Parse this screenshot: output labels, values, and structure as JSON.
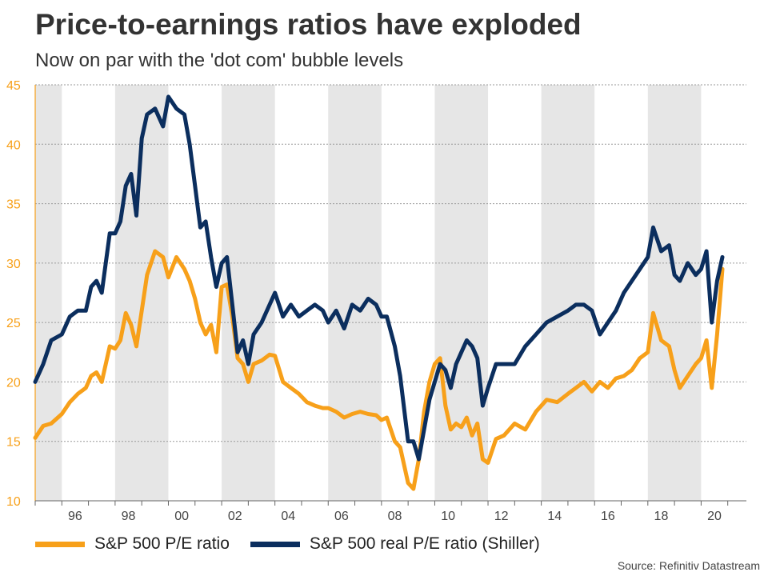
{
  "chart_data": {
    "type": "line",
    "title": "Price-to-earnings ratios have exploded",
    "subtitle": "Now on par with the 'dot com' bubble levels",
    "source": "Source: Refinitiv Datastream",
    "xlim": [
      1995,
      2021.7
    ],
    "ylim": [
      10,
      45
    ],
    "yticks": [
      "10",
      "15",
      "20",
      "25",
      "30",
      "35",
      "40",
      "45"
    ],
    "xticks": [
      {
        "year": 1996,
        "label": "96"
      },
      {
        "year": 1998,
        "label": "98"
      },
      {
        "year": 2000,
        "label": "00"
      },
      {
        "year": 2002,
        "label": "02"
      },
      {
        "year": 2004,
        "label": "04"
      },
      {
        "year": 2006,
        "label": "06"
      },
      {
        "year": 2008,
        "label": "08"
      },
      {
        "year": 2010,
        "label": "10"
      },
      {
        "year": 2012,
        "label": "12"
      },
      {
        "year": 2014,
        "label": "14"
      },
      {
        "year": 2016,
        "label": "16"
      },
      {
        "year": 2018,
        "label": "18"
      },
      {
        "year": 2020,
        "label": "20"
      }
    ],
    "shaded_years": [
      [
        1995,
        1996
      ],
      [
        1998,
        2000
      ],
      [
        2002,
        2004
      ],
      [
        2006,
        2008
      ],
      [
        2010,
        2012
      ],
      [
        2014,
        2016
      ],
      [
        2018,
        2020
      ]
    ],
    "series": [
      {
        "name": "S&P 500 P/E ratio",
        "color": "#f7a01a",
        "x": [
          1995.0,
          1995.3,
          1995.6,
          1996.0,
          1996.3,
          1996.6,
          1996.9,
          1997.1,
          1997.3,
          1997.5,
          1997.8,
          1998.0,
          1998.2,
          1998.4,
          1998.6,
          1998.8,
          1999.0,
          1999.2,
          1999.5,
          1999.8,
          2000.0,
          2000.3,
          2000.6,
          2000.8,
          2001.0,
          2001.2,
          2001.4,
          2001.6,
          2001.8,
          2002.0,
          2002.2,
          2002.4,
          2002.6,
          2002.8,
          2003.0,
          2003.2,
          2003.5,
          2003.8,
          2004.0,
          2004.3,
          2004.6,
          2004.9,
          2005.2,
          2005.5,
          2005.8,
          2006.0,
          2006.3,
          2006.6,
          2006.9,
          2007.2,
          2007.5,
          2007.8,
          2008.0,
          2008.2,
          2008.5,
          2008.7,
          2009.0,
          2009.2,
          2009.4,
          2009.6,
          2009.8,
          2010.0,
          2010.2,
          2010.4,
          2010.6,
          2010.8,
          2011.0,
          2011.2,
          2011.4,
          2011.6,
          2011.8,
          2012.0,
          2012.3,
          2012.6,
          2013.0,
          2013.4,
          2013.8,
          2014.2,
          2014.6,
          2015.0,
          2015.3,
          2015.6,
          2015.9,
          2016.2,
          2016.5,
          2016.8,
          2017.1,
          2017.4,
          2017.7,
          2018.0,
          2018.2,
          2018.5,
          2018.8,
          2019.0,
          2019.2,
          2019.5,
          2019.8,
          2020.0,
          2020.2,
          2020.4,
          2020.6,
          2020.8
        ],
        "values": [
          15.3,
          16.3,
          16.5,
          17.3,
          18.3,
          19.0,
          19.5,
          20.5,
          20.8,
          20.0,
          23.0,
          22.8,
          23.5,
          25.8,
          24.8,
          23.0,
          26.0,
          29.0,
          31.0,
          30.5,
          28.8,
          30.5,
          29.5,
          28.5,
          27.0,
          25.0,
          24.0,
          24.8,
          22.5,
          28.0,
          28.2,
          25.5,
          22.0,
          21.5,
          20.0,
          21.5,
          21.8,
          22.3,
          22.2,
          20.0,
          19.5,
          19.0,
          18.3,
          18.0,
          17.8,
          17.8,
          17.5,
          17.0,
          17.3,
          17.5,
          17.3,
          17.2,
          16.8,
          17.0,
          15.0,
          14.5,
          11.5,
          11.0,
          13.5,
          17.5,
          20.0,
          21.5,
          22.0,
          18.0,
          16.0,
          16.5,
          16.2,
          17.0,
          15.5,
          16.5,
          13.5,
          13.2,
          15.2,
          15.5,
          16.5,
          16.0,
          17.5,
          18.5,
          18.3,
          19.0,
          19.5,
          20.0,
          19.2,
          20.0,
          19.5,
          20.3,
          20.5,
          21.0,
          22.0,
          22.5,
          25.8,
          23.5,
          23.0,
          21.0,
          19.5,
          20.5,
          21.5,
          22.0,
          23.5,
          19.5,
          24.0,
          29.5
        ]
      },
      {
        "name": "S&P 500 real P/E ratio (Shiller)",
        "color": "#0b2e5e",
        "x": [
          1995.0,
          1995.3,
          1995.6,
          1996.0,
          1996.3,
          1996.6,
          1996.9,
          1997.1,
          1997.3,
          1997.5,
          1997.8,
          1998.0,
          1998.2,
          1998.4,
          1998.6,
          1998.8,
          1999.0,
          1999.2,
          1999.5,
          1999.8,
          2000.0,
          2000.3,
          2000.6,
          2000.8,
          2001.0,
          2001.2,
          2001.4,
          2001.6,
          2001.8,
          2002.0,
          2002.2,
          2002.4,
          2002.6,
          2002.8,
          2003.0,
          2003.2,
          2003.5,
          2003.8,
          2004.0,
          2004.3,
          2004.6,
          2004.9,
          2005.2,
          2005.5,
          2005.8,
          2006.0,
          2006.3,
          2006.6,
          2006.9,
          2007.2,
          2007.5,
          2007.8,
          2008.0,
          2008.2,
          2008.5,
          2008.7,
          2009.0,
          2009.2,
          2009.4,
          2009.6,
          2009.8,
          2010.0,
          2010.2,
          2010.4,
          2010.6,
          2010.8,
          2011.0,
          2011.2,
          2011.4,
          2011.6,
          2011.8,
          2012.0,
          2012.3,
          2012.6,
          2013.0,
          2013.4,
          2013.8,
          2014.2,
          2014.6,
          2015.0,
          2015.3,
          2015.6,
          2015.9,
          2016.2,
          2016.5,
          2016.8,
          2017.1,
          2017.4,
          2017.7,
          2018.0,
          2018.2,
          2018.5,
          2018.8,
          2019.0,
          2019.2,
          2019.5,
          2019.8,
          2020.0,
          2020.2,
          2020.4,
          2020.6,
          2020.8
        ],
        "values": [
          20.0,
          21.5,
          23.5,
          24.0,
          25.5,
          26.0,
          26.0,
          28.0,
          28.5,
          27.5,
          32.5,
          32.5,
          33.5,
          36.5,
          37.5,
          34.0,
          40.5,
          42.5,
          43.0,
          41.5,
          44.0,
          43.0,
          42.5,
          40.0,
          36.5,
          33.0,
          33.5,
          30.5,
          28.0,
          30.0,
          30.5,
          26.5,
          22.5,
          23.5,
          21.5,
          24.0,
          25.0,
          26.5,
          27.5,
          25.5,
          26.5,
          25.5,
          26.0,
          26.5,
          26.0,
          25.0,
          26.0,
          24.5,
          26.5,
          26.0,
          27.0,
          26.5,
          25.5,
          25.5,
          23.0,
          20.5,
          15.0,
          15.0,
          13.5,
          16.0,
          18.5,
          20.0,
          21.5,
          21.0,
          19.5,
          21.5,
          22.5,
          23.5,
          23.0,
          22.0,
          18.0,
          19.5,
          21.5,
          21.5,
          21.5,
          23.0,
          24.0,
          25.0,
          25.5,
          26.0,
          26.5,
          26.5,
          26.0,
          24.0,
          25.0,
          26.0,
          27.5,
          28.5,
          29.5,
          30.5,
          33.0,
          31.0,
          31.5,
          29.0,
          28.5,
          30.0,
          29.0,
          29.5,
          31.0,
          25.0,
          28.5,
          30.5
        ]
      }
    ]
  }
}
